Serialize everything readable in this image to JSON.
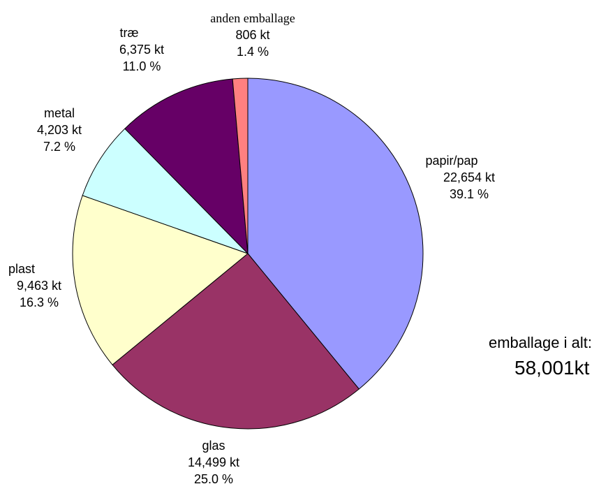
{
  "chart_data": {
    "type": "pie",
    "slices": [
      {
        "name": "papir/pap",
        "amount": "22,654 kt",
        "percent": "39.1 %",
        "value": 22654,
        "color": "#9999ff"
      },
      {
        "name": "glas",
        "amount": "14,499 kt",
        "percent": "25.0 %",
        "value": 14499,
        "color": "#993366"
      },
      {
        "name": "plast",
        "amount": "9,463 kt",
        "percent": "16.3 %",
        "value": 9463,
        "color": "#ffffcc"
      },
      {
        "name": "metal",
        "amount": "4,203 kt",
        "percent": "7.2 %",
        "value": 4203,
        "color": "#ccffff"
      },
      {
        "name": "træ",
        "amount": "6,375 kt",
        "percent": "11.0 %",
        "value": 6375,
        "color": "#660066"
      },
      {
        "name": "anden emballage",
        "amount": "806 kt",
        "percent": "1.4 %",
        "value": 806,
        "color": "#ff8080"
      }
    ],
    "start_angle": "12 o'clock",
    "direction": "clockwise",
    "legend": "none"
  },
  "total": {
    "label": "emballage i alt:",
    "value": "58,001kt"
  }
}
